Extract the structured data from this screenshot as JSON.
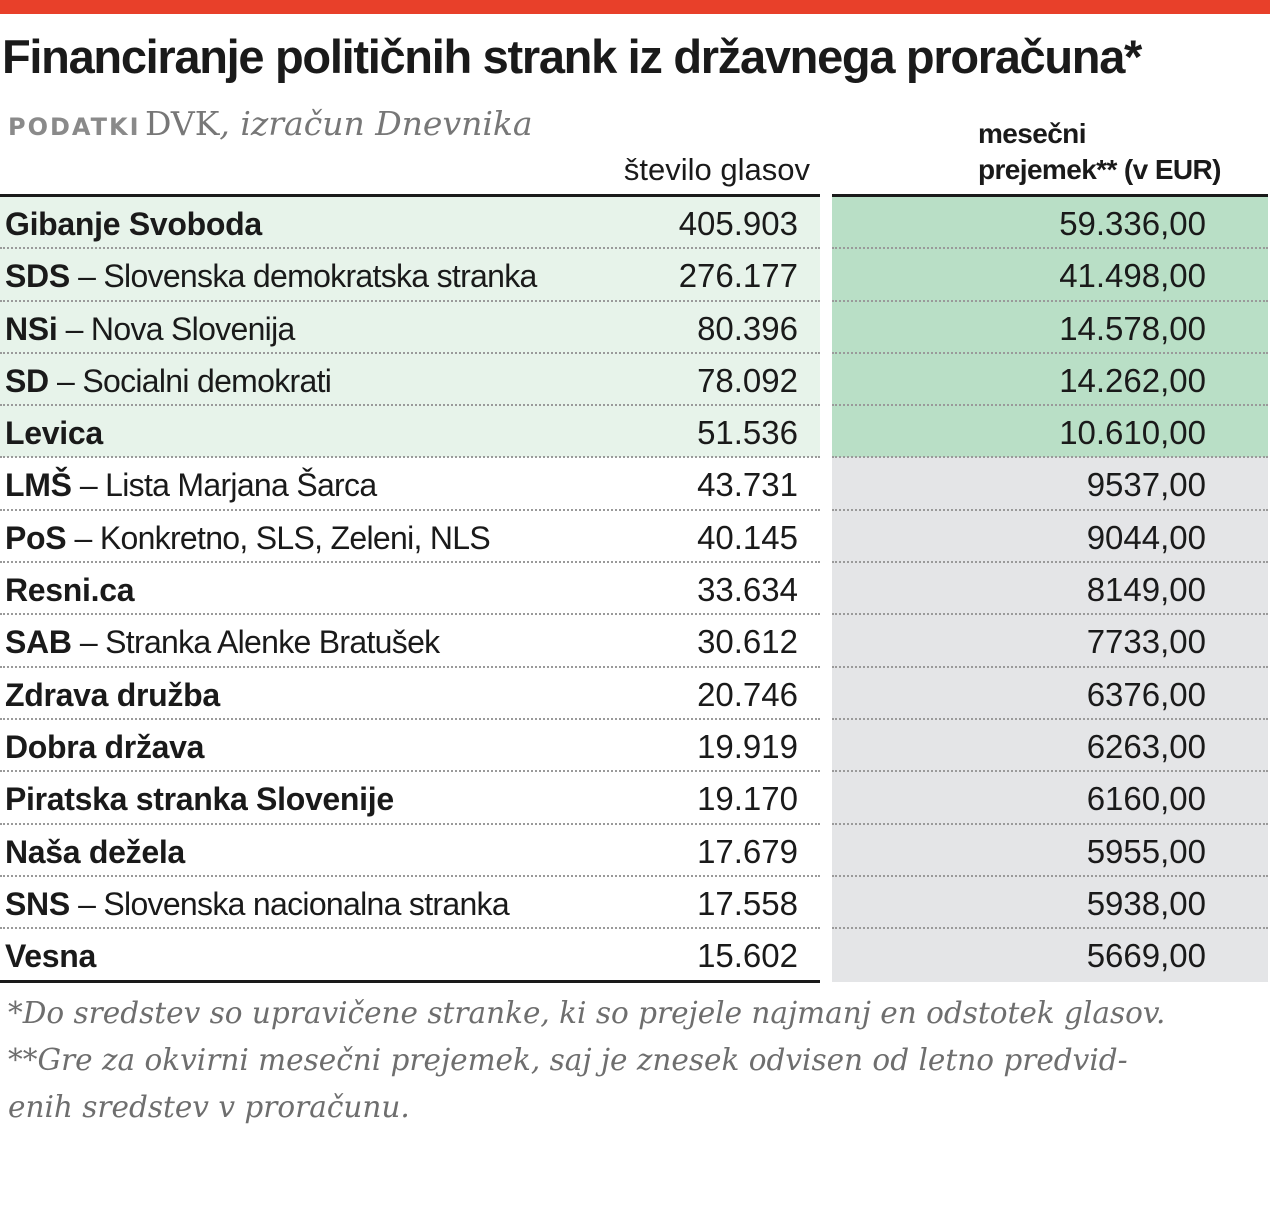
{
  "title": "Financiranje političnih strank iz državnega proračuna*",
  "source": {
    "label": "PODATKI",
    "name": "DVK",
    "rest": ", izračun Dnevnika"
  },
  "columns": {
    "votes": "število glasov",
    "payment_line1": "mesečni",
    "payment_line2": "prejemek** (v EUR)"
  },
  "colors": {
    "accent": "#e8402a",
    "green_light": "#e7f3ea",
    "green_dark": "#b9dfc6",
    "grey": "#e4e5e7"
  },
  "chart_data": {
    "type": "table",
    "title": "Financiranje političnih strank iz državnega proračuna*",
    "headers": [
      "",
      "število glasov",
      "mesečni prejemek** (v EUR)"
    ],
    "rows": [
      {
        "abbr": "Gibanje Svoboda",
        "full": "",
        "votes": "405.903",
        "payment": "59.336,00",
        "highlight": true
      },
      {
        "abbr": "SDS",
        "full": " – Slovenska demokratska stranka",
        "votes": "276.177",
        "payment": "41.498,00",
        "highlight": true
      },
      {
        "abbr": "NSi",
        "full": " – Nova Slovenija",
        "votes": "80.396",
        "payment": "14.578,00",
        "highlight": true
      },
      {
        "abbr": "SD",
        "full": " – Socialni demokrati",
        "votes": "78.092",
        "payment": "14.262,00",
        "highlight": true
      },
      {
        "abbr": "Levica",
        "full": "",
        "votes": "51.536",
        "payment": "10.610,00",
        "highlight": true
      },
      {
        "abbr": "LMŠ",
        "full": " – Lista Marjana Šarca",
        "votes": "43.731",
        "payment": "9537,00",
        "highlight": false
      },
      {
        "abbr": "PoS",
        "full": " – Konkretno, SLS, Zeleni, NLS",
        "votes": "40.145",
        "payment": "9044,00",
        "highlight": false
      },
      {
        "abbr": "Resni.ca",
        "full": "",
        "votes": "33.634",
        "payment": "8149,00",
        "highlight": false
      },
      {
        "abbr": "SAB",
        "full": " – Stranka Alenke Bratušek",
        "votes": "30.612",
        "payment": "7733,00",
        "highlight": false
      },
      {
        "abbr": "Zdrava družba",
        "full": "",
        "votes": "20.746",
        "payment": "6376,00",
        "highlight": false
      },
      {
        "abbr": "Dobra država",
        "full": "",
        "votes": "19.919",
        "payment": "6263,00",
        "highlight": false
      },
      {
        "abbr": "Piratska stranka Slovenije",
        "full": "",
        "votes": "19.170",
        "payment": "6160,00",
        "highlight": false
      },
      {
        "abbr": "Naša dežela",
        "full": "",
        "votes": "17.679",
        "payment": "5955,00",
        "highlight": false
      },
      {
        "abbr": "SNS",
        "full": " – Slovenska nacionalna stranka",
        "votes": "17.558",
        "payment": "5938,00",
        "highlight": false
      },
      {
        "abbr": "Vesna",
        "full": "",
        "votes": "15.602",
        "payment": "5669,00",
        "highlight": false
      }
    ]
  },
  "footnotes": {
    "line1": "*Do sredstev so upravičene stranke, ki so prejele najmanj en odstotek glasov.",
    "line2": "**Gre za okvirni mesečni prejemek, saj je znesek odvisen od letno predvid-",
    "line3": "enih sredstev v proračunu."
  }
}
